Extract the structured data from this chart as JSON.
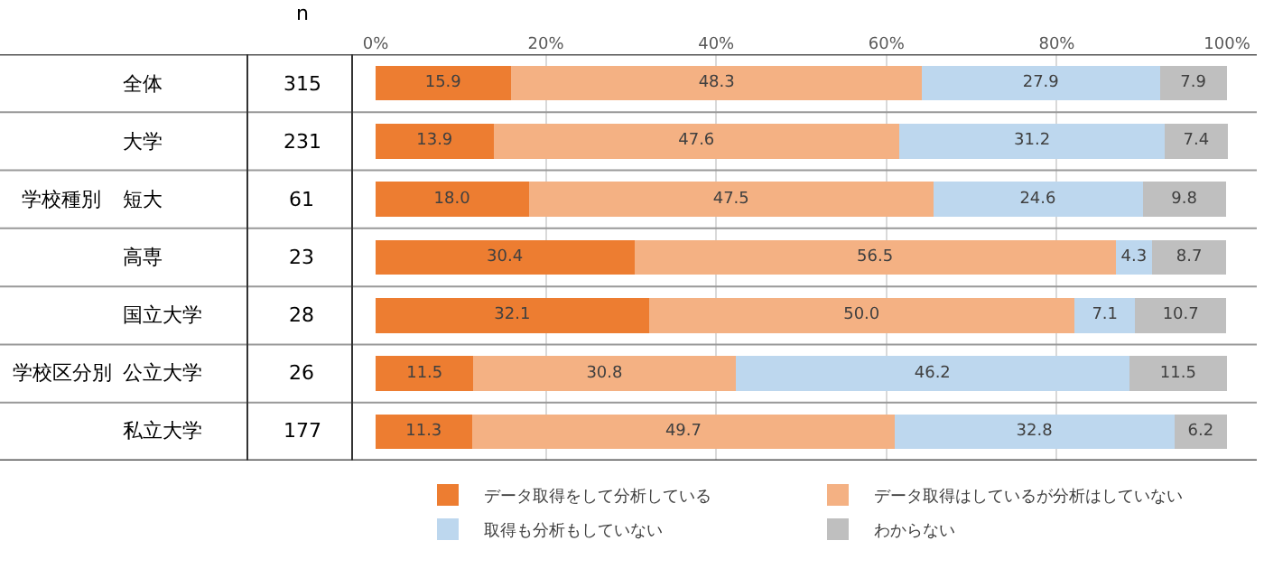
{
  "chart_data": {
    "type": "bar",
    "orientation": "horizontal",
    "stacked": true,
    "categories": [
      "全体",
      "大学",
      "短大",
      "高専",
      "国立大学",
      "公立大学",
      "私立大学"
    ],
    "series": [
      {
        "name": "データ取得をして分析している",
        "color": "#ed7d31",
        "values": [
          15.9,
          13.9,
          18.0,
          30.4,
          32.1,
          11.5,
          11.3
        ],
        "value_labels": [
          "15.9",
          "13.9",
          "18.0",
          "30.4",
          "32.1",
          "11.5",
          "11.3"
        ]
      },
      {
        "name": "データ取得はしているが分析はしていない",
        "color": "#f4b183",
        "values": [
          48.3,
          47.6,
          47.5,
          56.5,
          50.0,
          30.8,
          49.7
        ],
        "value_labels": [
          "48.3",
          "47.6",
          "47.5",
          "56.5",
          "50.0",
          "30.8",
          "49.7"
        ]
      },
      {
        "name": "取得も分析もしていない",
        "color": "#bdd7ee",
        "values": [
          27.9,
          31.2,
          24.6,
          4.3,
          7.1,
          46.2,
          32.8
        ],
        "value_labels": [
          "27.9",
          "31.2",
          "24.6",
          "4.3",
          "7.1",
          "46.2",
          "32.8"
        ]
      },
      {
        "name": "わからない",
        "color": "#bfbfbf",
        "values": [
          7.9,
          7.4,
          9.8,
          8.7,
          10.7,
          11.5,
          6.2
        ],
        "value_labels": [
          "7.9",
          "7.4",
          "9.8",
          "8.7",
          "10.7",
          "11.5",
          "6.2"
        ]
      }
    ],
    "xlim": [
      0,
      100.1
    ],
    "xticks": [
      {
        "value": 0,
        "label": "0%"
      },
      {
        "value": 20,
        "label": "20%"
      },
      {
        "value": 40,
        "label": "40%"
      },
      {
        "value": 60,
        "label": "60%"
      },
      {
        "value": 80,
        "label": "80%"
      },
      {
        "value": 100,
        "label": "100%"
      }
    ],
    "grid": "x",
    "legend": "bottom",
    "annotations": [
      "n",
      "315",
      "231",
      "61",
      "23",
      "28",
      "26",
      "177",
      "学校種別",
      "学校区分別"
    ]
  }
}
